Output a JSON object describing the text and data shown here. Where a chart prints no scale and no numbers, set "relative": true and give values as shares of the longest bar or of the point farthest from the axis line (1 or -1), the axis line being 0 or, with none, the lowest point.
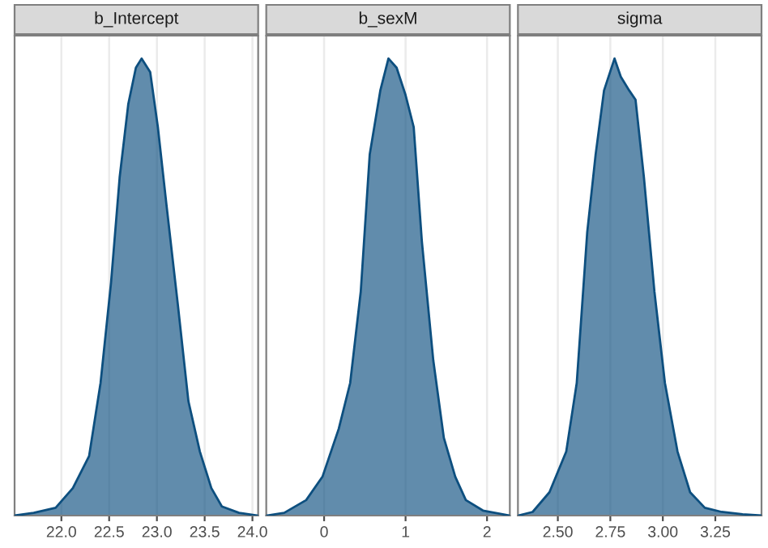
{
  "chart_data": [
    {
      "type": "area",
      "title": "b_Intercept",
      "relative": true,
      "tick_labels": "x",
      "grid": "x",
      "xlim": [
        21.51,
        24.06
      ],
      "xticks": [
        {
          "value": 22,
          "label": "22.0"
        },
        {
          "value": 22.5,
          "label": "22.5"
        },
        {
          "value": 23,
          "label": "23.0"
        },
        {
          "value": 23.5,
          "label": "23.5"
        },
        {
          "value": 24,
          "label": "24.0"
        }
      ],
      "series": [
        {
          "color": "#0d4f7f",
          "x": [
            21.51,
            21.71,
            21.94,
            22.12,
            22.29,
            22.41,
            22.52,
            22.61,
            22.7,
            22.78,
            22.84,
            22.93,
            23.01,
            23.1,
            23.22,
            23.33,
            23.45,
            23.57,
            23.68,
            23.86,
            24.06
          ],
          "values": [
            0,
            0.006,
            0.017,
            0.06,
            0.13,
            0.29,
            0.51,
            0.74,
            0.9,
            0.98,
            1,
            0.97,
            0.85,
            0.68,
            0.46,
            0.25,
            0.14,
            0.06,
            0.02,
            0.006,
            0
          ]
        }
      ]
    },
    {
      "type": "area",
      "title": "b_sexM",
      "relative": true,
      "tick_labels": "x",
      "grid": "x",
      "xlim": [
        -0.71,
        2.28
      ],
      "xticks": [
        0,
        1,
        2
      ],
      "series": [
        {
          "color": "#0d4f7f",
          "x": [
            -0.71,
            -0.49,
            -0.22,
            -0.02,
            0.18,
            0.32,
            0.45,
            0.56,
            0.69,
            0.79,
            0.89,
            1.0,
            1.1,
            1.2,
            1.34,
            1.47,
            1.61,
            1.74,
            1.95,
            2.28
          ],
          "values": [
            0,
            0.006,
            0.034,
            0.085,
            0.19,
            0.29,
            0.49,
            0.79,
            0.93,
            1,
            0.98,
            0.92,
            0.85,
            0.6,
            0.34,
            0.17,
            0.085,
            0.034,
            0.011,
            0
          ]
        }
      ]
    },
    {
      "type": "area",
      "title": "sigma",
      "relative": true,
      "tick_labels": "x",
      "grid": "x",
      "xlim": [
        2.31,
        3.47
      ],
      "xticks": [
        {
          "value": 2.5,
          "label": "2.50"
        },
        {
          "value": 2.75,
          "label": "2.75"
        },
        {
          "value": 3,
          "label": "3.00"
        },
        {
          "value": 3.25,
          "label": "3.25"
        }
      ],
      "series": [
        {
          "color": "#0d4f7f",
          "x": [
            2.31,
            2.38,
            2.46,
            2.54,
            2.59,
            2.64,
            2.68,
            2.72,
            2.77,
            2.8,
            2.84,
            2.87,
            2.91,
            2.96,
            3.01,
            3.07,
            3.13,
            3.2,
            3.28,
            3.38,
            3.47
          ],
          "values": [
            0,
            0.008,
            0.051,
            0.14,
            0.29,
            0.62,
            0.79,
            0.93,
            1,
            0.96,
            0.93,
            0.91,
            0.74,
            0.49,
            0.29,
            0.14,
            0.051,
            0.017,
            0.008,
            0.003,
            0
          ]
        }
      ]
    }
  ]
}
